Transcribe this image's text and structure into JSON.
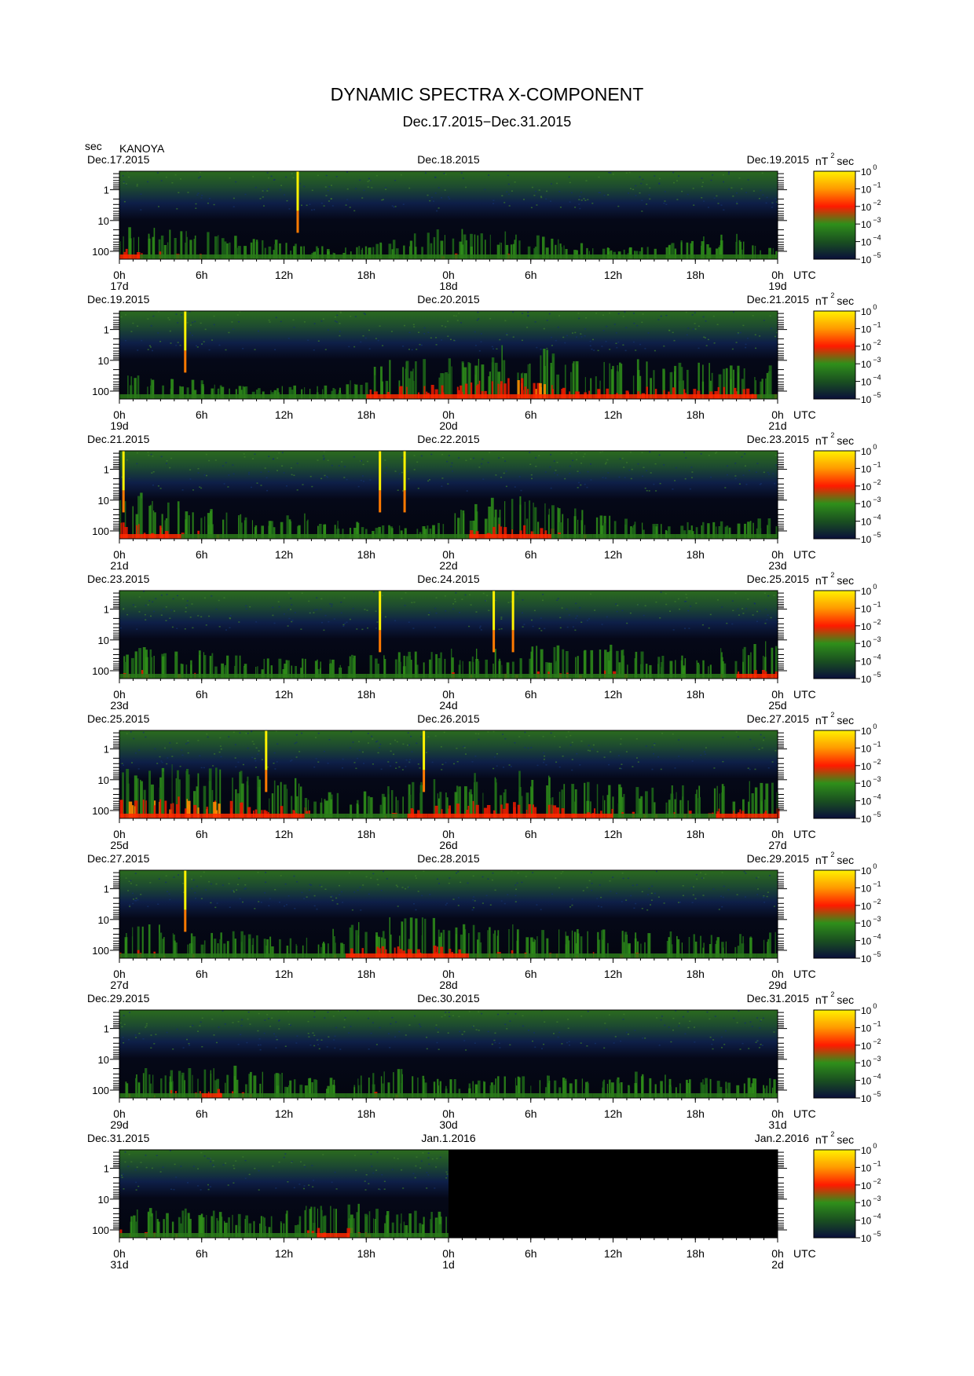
{
  "title": "DYNAMIC SPECTRA X-COMPONENT",
  "subtitle": "Dec.17.2015−Dec.31.2015",
  "station": "KANOYA",
  "y_unit": "sec",
  "colorbar_unit": "nT",
  "colorbar_unit_exp": "2",
  "colorbar_unit_tail": "sec",
  "colorbar_ticks": [
    {
      "base": "10",
      "exp": "0"
    },
    {
      "base": "10",
      "exp": "−1"
    },
    {
      "base": "10",
      "exp": "−2"
    },
    {
      "base": "10",
      "exp": "−3"
    },
    {
      "base": "10",
      "exp": "−4"
    },
    {
      "base": "10",
      "exp": "−5"
    }
  ],
  "colorbar_colors": [
    "#fff200",
    "#ff9a00",
    "#ff1a00",
    "#2f8f1a",
    "#1a5020",
    "#0a0f3a"
  ],
  "utc_label": "UTC",
  "chart_data": {
    "type": "heatmap",
    "title": "DYNAMIC SPECTRA X-COMPONENT",
    "subtitle": "Dec.17.2015−Dec.31.2015",
    "y_ticks": [
      "1",
      "10",
      "100"
    ],
    "x_ticks": [
      "0h",
      "6h",
      "12h",
      "18h",
      "0h",
      "6h",
      "12h",
      "18h",
      "0h"
    ],
    "panels": [
      {
        "start": "Dec.17.2015",
        "mid": "Dec.18.2015",
        "end": "Dec.19.2015",
        "d0": "17d",
        "d1": "18d",
        "d2": "19d",
        "activity": [
          0.55,
          0.5,
          0.45,
          0.45,
          0.4,
          0.35,
          0.35,
          0.3,
          0.25,
          0.2,
          0.2,
          0.2,
          0.25,
          0.3,
          0.4,
          0.45,
          0.45,
          0.4,
          0.45,
          0.4,
          0.35,
          0.3,
          0.25,
          0.2,
          0.2,
          0.2,
          0.25,
          0.3,
          0.35,
          0.4,
          0.3,
          0.25
        ],
        "events": [
          13.0
        ]
      },
      {
        "start": "Dec.19.2015",
        "mid": "Dec.20.2015",
        "end": "Dec.21.2015",
        "d0": "19d",
        "d1": "20d",
        "d2": "21d",
        "activity": [
          0.35,
          0.3,
          0.3,
          0.3,
          0.3,
          0.25,
          0.2,
          0.2,
          0.2,
          0.2,
          0.2,
          0.3,
          0.55,
          0.6,
          0.6,
          0.65,
          0.7,
          0.75,
          0.8,
          0.8,
          0.75,
          0.7,
          0.6,
          0.55,
          0.55,
          0.6,
          0.6,
          0.55,
          0.55,
          0.6,
          0.55,
          0.5
        ],
        "events": [
          4.8
        ]
      },
      {
        "start": "Dec.21.2015",
        "mid": "Dec.22.2015",
        "end": "Dec.23.2015",
        "d0": "21d",
        "d1": "22d",
        "d2": "23d",
        "activity": [
          0.7,
          0.6,
          0.55,
          0.5,
          0.45,
          0.4,
          0.35,
          0.35,
          0.4,
          0.35,
          0.3,
          0.25,
          0.2,
          0.2,
          0.2,
          0.25,
          0.45,
          0.6,
          0.65,
          0.65,
          0.55,
          0.5,
          0.45,
          0.35,
          0.3,
          0.25,
          0.25,
          0.25,
          0.3,
          0.3,
          0.3,
          0.3
        ],
        "events": [
          0.3,
          19.0,
          20.8
        ]
      },
      {
        "start": "Dec.23.2015",
        "mid": "Dec.24.2015",
        "end": "Dec.25.2015",
        "d0": "23d",
        "d1": "24d",
        "d2": "25d",
        "activity": [
          0.5,
          0.5,
          0.45,
          0.45,
          0.4,
          0.35,
          0.3,
          0.3,
          0.3,
          0.3,
          0.3,
          0.35,
          0.35,
          0.4,
          0.4,
          0.4,
          0.45,
          0.45,
          0.45,
          0.45,
          0.5,
          0.5,
          0.45,
          0.5,
          0.45,
          0.4,
          0.35,
          0.35,
          0.4,
          0.45,
          0.55,
          0.6
        ],
        "events": [
          19.0,
          27.3,
          28.7
        ]
      },
      {
        "start": "Dec.25.2015",
        "mid": "Dec.26.2015",
        "end": "Dec.27.2015",
        "d0": "25d",
        "d1": "26d",
        "d2": "27d",
        "activity": [
          0.75,
          0.8,
          0.8,
          0.75,
          0.75,
          0.7,
          0.65,
          0.6,
          0.6,
          0.5,
          0.4,
          0.4,
          0.45,
          0.5,
          0.55,
          0.6,
          0.65,
          0.7,
          0.7,
          0.7,
          0.65,
          0.6,
          0.55,
          0.55,
          0.5,
          0.5,
          0.5,
          0.5,
          0.5,
          0.55,
          0.55,
          0.55
        ],
        "events": [
          10.7,
          22.2
        ]
      },
      {
        "start": "Dec.27.2015",
        "mid": "Dec.28.2015",
        "end": "Dec.29.2015",
        "d0": "27d",
        "d1": "28d",
        "d2": "29d",
        "activity": [
          0.5,
          0.5,
          0.45,
          0.45,
          0.4,
          0.4,
          0.35,
          0.35,
          0.3,
          0.35,
          0.45,
          0.55,
          0.6,
          0.6,
          0.6,
          0.6,
          0.55,
          0.5,
          0.5,
          0.5,
          0.45,
          0.45,
          0.45,
          0.45,
          0.45,
          0.45,
          0.4,
          0.4,
          0.35,
          0.35,
          0.4,
          0.4
        ],
        "events": [
          4.8
        ]
      },
      {
        "start": "Dec.29.2015",
        "mid": "Dec.30.2015",
        "end": "Dec.31.2015",
        "d0": "29d",
        "d1": "30d",
        "d2": "31d",
        "activity": [
          0.45,
          0.45,
          0.5,
          0.5,
          0.55,
          0.5,
          0.45,
          0.4,
          0.35,
          0.3,
          0.3,
          0.35,
          0.45,
          0.45,
          0.35,
          0.3,
          0.3,
          0.3,
          0.35,
          0.35,
          0.35,
          0.3,
          0.3,
          0.3,
          0.35,
          0.4,
          0.35,
          0.3,
          0.3,
          0.3,
          0.3,
          0.3
        ],
        "events": []
      },
      {
        "start": "Dec.31.2015",
        "mid": "Jan.1.2016",
        "end": "Jan.2.2016",
        "d0": "31d",
        "d1": "1d",
        "d2": "2d",
        "activity": [
          0.5,
          0.45,
          0.45,
          0.45,
          0.4,
          0.4,
          0.4,
          0.35,
          0.35,
          0.35,
          0.4,
          0.5,
          0.55,
          0.55,
          0.5,
          0.45,
          0.4,
          0.4,
          0.4,
          0.4
        ],
        "data_until_hour": 24,
        "events": []
      }
    ]
  }
}
